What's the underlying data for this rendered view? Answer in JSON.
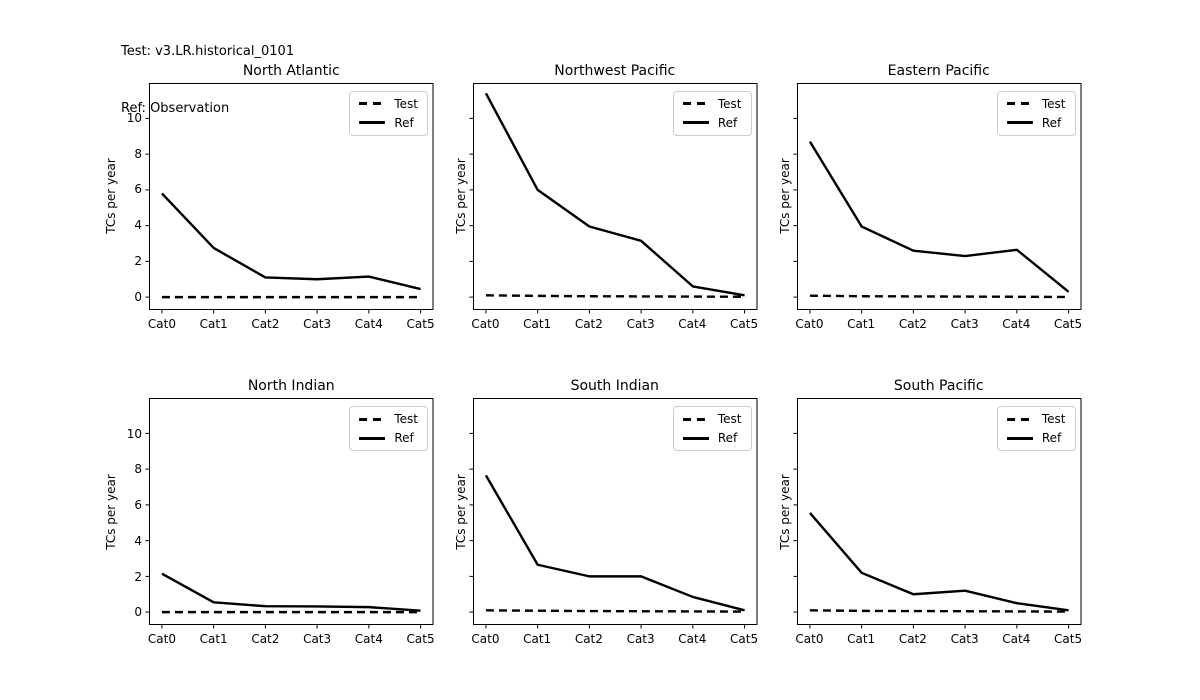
{
  "header": {
    "line1": "Test: v3.LR.historical_0101",
    "line2": "Ref: Observation"
  },
  "colors": {
    "line": "#000000",
    "text": "#000000",
    "legend_border": "#cccccc",
    "background": "#ffffff"
  },
  "chart_data": [
    {
      "type": "line",
      "title": "North Atlantic",
      "ylabel": "TCs per year",
      "categories": [
        "Cat0",
        "Cat1",
        "Cat2",
        "Cat3",
        "Cat4",
        "Cat5"
      ],
      "yticks": [
        0,
        2,
        4,
        6,
        8,
        10
      ],
      "ylim": [
        -0.72,
        11.98
      ],
      "show_ytick_labels": true,
      "grid": false,
      "legend_position": "upper right",
      "series": [
        {
          "name": "Test",
          "style": "dashed",
          "values": [
            0,
            0,
            0,
            0,
            0,
            0
          ]
        },
        {
          "name": "Ref",
          "style": "solid",
          "values": [
            5.8,
            2.75,
            1.1,
            1.0,
            1.15,
            0.45
          ]
        }
      ]
    },
    {
      "type": "line",
      "title": "Northwest Pacific",
      "ylabel": "TCs per year",
      "categories": [
        "Cat0",
        "Cat1",
        "Cat2",
        "Cat3",
        "Cat4",
        "Cat5"
      ],
      "yticks": [
        0,
        2,
        4,
        6,
        8,
        10
      ],
      "ylim": [
        -0.72,
        11.98
      ],
      "show_ytick_labels": false,
      "grid": false,
      "legend_position": "upper right",
      "series": [
        {
          "name": "Test",
          "style": "dashed",
          "values": [
            0.1,
            0.07,
            0.05,
            0.04,
            0.03,
            0.02
          ]
        },
        {
          "name": "Ref",
          "style": "solid",
          "values": [
            11.4,
            6.0,
            3.95,
            3.15,
            0.6,
            0.1
          ]
        }
      ]
    },
    {
      "type": "line",
      "title": "Eastern Pacific",
      "ylabel": "TCs per year",
      "categories": [
        "Cat0",
        "Cat1",
        "Cat2",
        "Cat3",
        "Cat4",
        "Cat5"
      ],
      "yticks": [
        0,
        2,
        4,
        6,
        8,
        10
      ],
      "ylim": [
        -0.72,
        11.98
      ],
      "show_ytick_labels": false,
      "grid": false,
      "legend_position": "upper right",
      "series": [
        {
          "name": "Test",
          "style": "dashed",
          "values": [
            0.08,
            0.05,
            0.04,
            0.03,
            0.02,
            0.01
          ]
        },
        {
          "name": "Ref",
          "style": "solid",
          "values": [
            8.7,
            3.95,
            2.6,
            2.3,
            2.65,
            0.3
          ]
        }
      ]
    },
    {
      "type": "line",
      "title": "North Indian",
      "ylabel": "TCs per year",
      "categories": [
        "Cat0",
        "Cat1",
        "Cat2",
        "Cat3",
        "Cat4",
        "Cat5"
      ],
      "yticks": [
        0,
        2,
        4,
        6,
        8,
        10
      ],
      "ylim": [
        -0.72,
        11.98
      ],
      "show_ytick_labels": true,
      "grid": false,
      "legend_position": "upper right",
      "series": [
        {
          "name": "Test",
          "style": "dashed",
          "values": [
            0,
            0,
            0,
            0,
            0,
            0
          ]
        },
        {
          "name": "Ref",
          "style": "solid",
          "values": [
            2.15,
            0.55,
            0.33,
            0.32,
            0.28,
            0.08
          ]
        }
      ]
    },
    {
      "type": "line",
      "title": "South Indian",
      "ylabel": "TCs per year",
      "categories": [
        "Cat0",
        "Cat1",
        "Cat2",
        "Cat3",
        "Cat4",
        "Cat5"
      ],
      "yticks": [
        0,
        2,
        4,
        6,
        8,
        10
      ],
      "ylim": [
        -0.72,
        11.98
      ],
      "show_ytick_labels": false,
      "grid": false,
      "legend_position": "upper right",
      "series": [
        {
          "name": "Test",
          "style": "dashed",
          "values": [
            0.1,
            0.08,
            0.06,
            0.05,
            0.04,
            0.03
          ]
        },
        {
          "name": "Ref",
          "style": "solid",
          "values": [
            7.65,
            2.65,
            2.0,
            2.0,
            0.85,
            0.1
          ]
        }
      ]
    },
    {
      "type": "line",
      "title": "South Pacific",
      "ylabel": "TCs per year",
      "categories": [
        "Cat0",
        "Cat1",
        "Cat2",
        "Cat3",
        "Cat4",
        "Cat5"
      ],
      "yticks": [
        0,
        2,
        4,
        6,
        8,
        10
      ],
      "ylim": [
        -0.72,
        11.98
      ],
      "show_ytick_labels": false,
      "grid": false,
      "legend_position": "upper right",
      "series": [
        {
          "name": "Test",
          "style": "dashed",
          "values": [
            0.1,
            0.07,
            0.06,
            0.05,
            0.04,
            0.03
          ]
        },
        {
          "name": "Ref",
          "style": "solid",
          "values": [
            5.55,
            2.2,
            1.0,
            1.2,
            0.5,
            0.1
          ]
        }
      ]
    }
  ]
}
